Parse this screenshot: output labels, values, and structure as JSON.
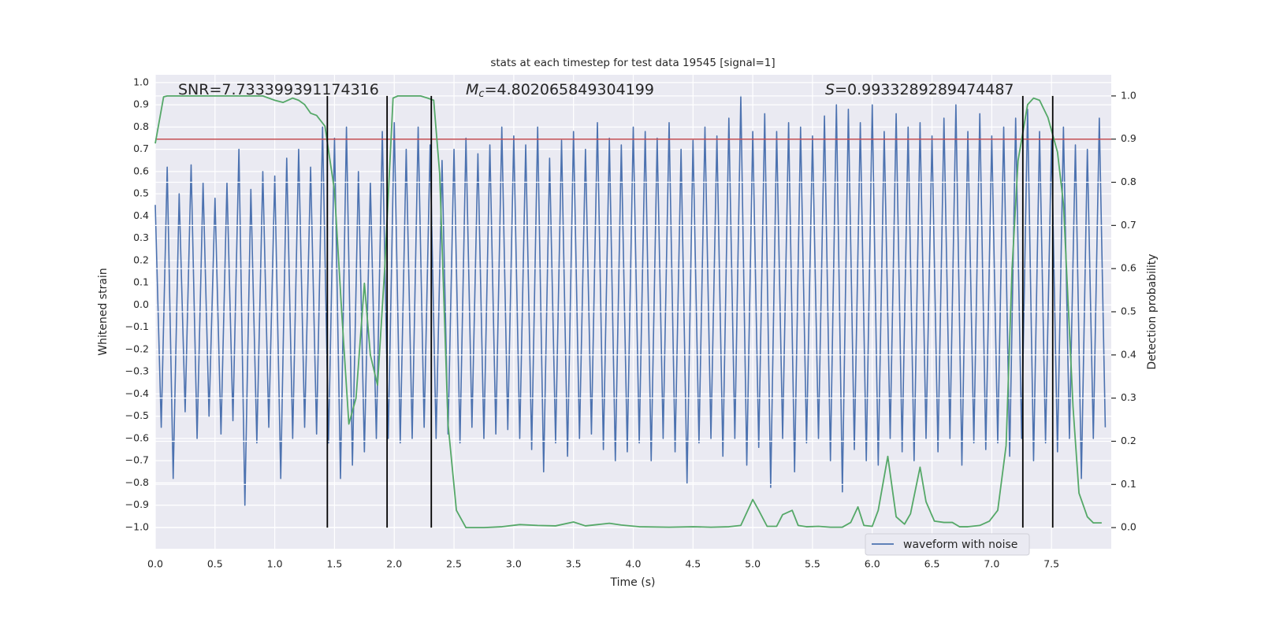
{
  "chart_data": {
    "type": "line",
    "title": "stats at each timestep for test data 19545 [signal=1]",
    "xlabel": "Time (s)",
    "ylabel": "Whitened strain",
    "y2label": "Detection probability",
    "annotations": [
      {
        "label": "SNR",
        "value": "=7.733399391174316"
      },
      {
        "label": "M",
        "sub": "c",
        "value": "=4.802065849304199"
      },
      {
        "label": "S",
        "value": "=0.9933289289474487"
      }
    ],
    "xlim": [
      0,
      8.0
    ],
    "ylim": [
      -1.096,
      1.035
    ],
    "y2lim": [
      -0.049,
      1.049
    ],
    "xticks": [
      {
        "value": 0,
        "label": "0.0"
      },
      0.5,
      {
        "value": 1,
        "label": "1.0"
      },
      1.5,
      {
        "value": 2,
        "label": "2.0"
      },
      2.5,
      {
        "value": 3,
        "label": "3.0"
      },
      3.5,
      {
        "value": 4,
        "label": "4.0"
      },
      4.5,
      {
        "value": 5,
        "label": "5.0"
      },
      5.5,
      {
        "value": 6,
        "label": "6.0"
      },
      6.5,
      {
        "value": 7,
        "label": "7.0"
      },
      7.5
    ],
    "yticks": [
      {
        "value": -1,
        "label": "−1.0"
      },
      {
        "value": -0.9,
        "label": "−0.9"
      },
      {
        "value": -0.8,
        "label": "−0.8"
      },
      {
        "value": -0.7,
        "label": "−0.7"
      },
      {
        "value": -0.6,
        "label": "−0.6"
      },
      {
        "value": -0.5,
        "label": "−0.5"
      },
      {
        "value": -0.4,
        "label": "−0.4"
      },
      {
        "value": -0.3,
        "label": "−0.3"
      },
      {
        "value": -0.2,
        "label": "−0.2"
      },
      {
        "value": -0.1,
        "label": "−0.1"
      },
      {
        "value": 0,
        "label": "0.0"
      },
      0.1,
      0.2,
      0.3,
      0.4,
      0.5,
      0.6,
      0.7,
      0.8,
      0.9,
      {
        "value": 1,
        "label": "1.0"
      }
    ],
    "y2ticks": [
      {
        "value": 0,
        "label": "0.0"
      },
      0.1,
      0.2,
      0.3,
      0.4,
      0.5,
      0.6,
      0.7,
      0.8,
      0.9,
      {
        "value": 1,
        "label": "1.0"
      }
    ],
    "grid": true,
    "legend": "lower right",
    "series": [
      {
        "name": "waveform with noise",
        "color": "#4c72b0",
        "x": [
          0,
          0.05,
          0.1,
          0.15,
          0.2,
          0.25,
          0.3,
          0.35,
          0.4,
          0.45,
          0.5,
          0.55,
          0.6,
          0.65,
          0.7,
          0.75,
          0.8,
          0.85,
          0.9,
          0.95,
          1,
          1.05,
          1.1,
          1.15,
          1.2,
          1.25,
          1.3,
          1.35,
          1.4,
          1.45,
          1.5,
          1.55,
          1.6,
          1.65,
          1.7,
          1.75,
          1.8,
          1.85,
          1.9,
          1.95,
          2,
          2.05,
          2.1,
          2.15,
          2.2,
          2.25,
          2.3,
          2.35,
          2.4,
          2.45,
          2.5,
          2.55,
          2.6,
          2.65,
          2.7,
          2.75,
          2.8,
          2.85,
          2.9,
          2.95,
          3,
          3.05,
          3.1,
          3.15,
          3.2,
          3.25,
          3.3,
          3.35,
          3.4,
          3.45,
          3.5,
          3.55,
          3.6,
          3.65,
          3.7,
          3.75,
          3.8,
          3.85,
          3.9,
          3.95,
          4,
          4.05,
          4.1,
          4.15,
          4.2,
          4.25,
          4.3,
          4.35,
          4.4,
          4.45,
          4.5,
          4.55,
          4.6,
          4.65,
          4.7,
          4.75,
          4.8,
          4.85,
          4.9,
          4.95,
          5,
          5.05,
          5.1,
          5.15,
          5.2,
          5.25,
          5.3,
          5.35,
          5.4,
          5.45,
          5.5,
          5.55,
          5.6,
          5.65,
          5.7,
          5.75,
          5.8,
          5.85,
          5.9,
          5.95,
          6,
          6.05,
          6.1,
          6.15,
          6.2,
          6.25,
          6.3,
          6.35,
          6.4,
          6.45,
          6.5,
          6.55,
          6.6,
          6.65,
          6.7,
          6.75,
          6.8,
          6.85,
          6.9,
          6.95,
          7,
          7.05,
          7.1,
          7.15,
          7.2,
          7.25,
          7.3,
          7.35,
          7.4,
          7.45,
          7.5,
          7.55,
          7.6,
          7.65,
          7.7,
          7.75,
          7.8,
          7.85,
          7.9,
          7.95
        ],
        "values": [
          0.45,
          -0.55,
          0.62,
          -0.78,
          0.5,
          -0.48,
          0.63,
          -0.6,
          0.55,
          -0.5,
          0.48,
          -0.58,
          0.55,
          -0.52,
          0.7,
          -0.9,
          0.52,
          -0.62,
          0.6,
          -0.55,
          0.58,
          -0.78,
          0.66,
          -0.6,
          0.7,
          -0.55,
          0.62,
          -0.58,
          0.8,
          -0.62,
          0.75,
          -0.78,
          0.8,
          -0.72,
          0.6,
          -0.66,
          0.55,
          -0.6,
          0.78,
          -0.6,
          0.82,
          -0.62,
          0.7,
          -0.6,
          0.8,
          -0.55,
          0.72,
          -0.6,
          0.65,
          -0.58,
          0.7,
          -0.62,
          0.75,
          -0.55,
          0.68,
          -0.6,
          0.72,
          -0.58,
          0.8,
          -0.56,
          0.76,
          -0.6,
          0.72,
          -0.65,
          0.8,
          -0.75,
          0.66,
          -0.62,
          0.74,
          -0.68,
          0.78,
          -0.6,
          0.7,
          -0.58,
          0.82,
          -0.65,
          0.75,
          -0.7,
          0.72,
          -0.66,
          0.8,
          -0.62,
          0.78,
          -0.7,
          0.75,
          -0.6,
          0.82,
          -0.66,
          0.7,
          -0.8,
          0.74,
          -0.62,
          0.8,
          -0.6,
          0.76,
          -0.68,
          0.84,
          -0.6,
          0.94,
          -0.72,
          0.78,
          -0.64,
          0.86,
          -0.82,
          0.78,
          -0.6,
          0.82,
          -0.75,
          0.8,
          -0.62,
          0.76,
          -0.6,
          0.85,
          -0.7,
          0.9,
          -0.84,
          0.88,
          -0.65,
          0.82,
          -0.7,
          0.9,
          -0.72,
          0.78,
          -0.6,
          0.86,
          -0.66,
          0.8,
          -0.7,
          0.82,
          -0.6,
          0.76,
          -0.66,
          0.84,
          -0.6,
          0.9,
          -0.72,
          0.78,
          -0.62,
          0.86,
          -0.65,
          0.76,
          -0.62,
          0.8,
          -0.68,
          0.84,
          -0.6,
          0.88,
          -0.7,
          0.78,
          -0.62,
          0.74,
          -0.66,
          0.8,
          -0.6,
          0.72,
          -0.78,
          0.7,
          -0.6,
          0.84,
          -0.55
        ]
      },
      {
        "color": "#55a868",
        "axis": "y2",
        "x": [
          0,
          0.07,
          0.1,
          0.9,
          1.0,
          1.07,
          1.15,
          1.2,
          1.25,
          1.3,
          1.35,
          1.42,
          1.5,
          1.56,
          1.62,
          1.68,
          1.75,
          1.8,
          1.86,
          1.92,
          1.99,
          2.03,
          2.15,
          2.22,
          2.28,
          2.33,
          2.38,
          2.45,
          2.52,
          2.6,
          2.75,
          2.9,
          3.05,
          3.2,
          3.35,
          3.5,
          3.6,
          3.7,
          3.8,
          3.9,
          4.05,
          4.3,
          4.5,
          4.65,
          4.8,
          4.9,
          5.0,
          5.05,
          5.12,
          5.2,
          5.25,
          5.33,
          5.38,
          5.45,
          5.55,
          5.65,
          5.75,
          5.82,
          5.88,
          5.93,
          6.0,
          6.05,
          6.13,
          6.2,
          6.27,
          6.32,
          6.4,
          6.45,
          6.52,
          6.6,
          6.67,
          6.73,
          6.8,
          6.9,
          6.98,
          7.05,
          7.12,
          7.17,
          7.22,
          7.3,
          7.35,
          7.4,
          7.47,
          7.55,
          7.6,
          7.68,
          7.73,
          7.8,
          7.85,
          7.92
        ],
        "values": [
          0.89,
          0.998,
          1.0,
          1.0,
          0.99,
          0.985,
          0.995,
          0.99,
          0.98,
          0.96,
          0.955,
          0.93,
          0.78,
          0.5,
          0.24,
          0.3,
          0.566,
          0.4,
          0.33,
          0.6,
          0.995,
          1.0,
          1.0,
          1.0,
          0.995,
          0.99,
          0.82,
          0.24,
          0.04,
          0.0,
          0.0,
          0.002,
          0.007,
          0.005,
          0.004,
          0.013,
          0.004,
          0.007,
          0.01,
          0.006,
          0.002,
          0.001,
          0.002,
          0.001,
          0.002,
          0.005,
          0.065,
          0.04,
          0.003,
          0.003,
          0.03,
          0.04,
          0.005,
          0.002,
          0.003,
          0.001,
          0.001,
          0.012,
          0.048,
          0.005,
          0.003,
          0.04,
          0.165,
          0.025,
          0.008,
          0.032,
          0.14,
          0.06,
          0.015,
          0.012,
          0.012,
          0.002,
          0.002,
          0.005,
          0.015,
          0.04,
          0.19,
          0.6,
          0.85,
          0.98,
          0.995,
          0.99,
          0.95,
          0.87,
          0.75,
          0.28,
          0.08,
          0.025,
          0.011,
          0.011
        ]
      }
    ],
    "hlines": [
      {
        "y2": 0.9,
        "color": "#c44e52"
      }
    ],
    "vlines": {
      "x": [
        1.44,
        1.94,
        2.31,
        7.26,
        7.51
      ],
      "y2range": [
        0,
        1
      ],
      "color": "#000000"
    }
  }
}
